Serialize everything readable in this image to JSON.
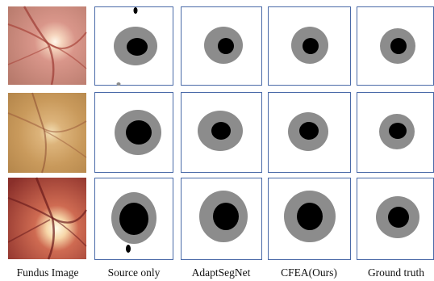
{
  "figure": {
    "columns": [
      {
        "id": "fundus",
        "label": "Fundus Image"
      },
      {
        "id": "source_only",
        "label": "Source only"
      },
      {
        "id": "adaptsegnet",
        "label": "AdaptSegNet"
      },
      {
        "id": "cfea",
        "label": "CFEA(Ours)"
      },
      {
        "id": "ground_truth",
        "label": "Ground truth"
      }
    ],
    "rows": 3,
    "colors": {
      "panel_border": "#4a6aa8",
      "disc": "#8c8c8c",
      "cup": "#000000",
      "background": "#ffffff",
      "fundus_bg": [
        "#c68a7c",
        "#c8a06a",
        "#b85a52"
      ]
    }
  }
}
